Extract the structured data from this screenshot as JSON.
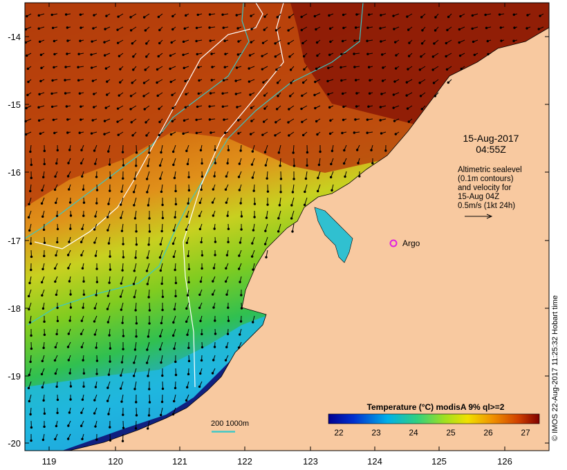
{
  "map": {
    "lon_ticks": [
      "119",
      "120",
      "121",
      "122",
      "123",
      "124",
      "125",
      "126"
    ],
    "lat_ticks": [
      "-14",
      "-15",
      "-16",
      "-17",
      "-18",
      "-19",
      "-20"
    ],
    "date_line1": "15-Aug-2017",
    "date_line2": "04:55Z",
    "altimetry_lines": [
      "Altimetric sealevel",
      "(0.1m contours)",
      "and velocity for",
      "15-Aug 04Z",
      "0.5m/s (1kt 24h)"
    ],
    "argo_label": "Argo",
    "colorbar_title": "Temperature (°C) modisA 9% ql>=2",
    "colorbar_ticks": [
      "22",
      "23",
      "24",
      "25",
      "26",
      "27"
    ],
    "contour_legend": "200  1000m",
    "credit": "© IMOS 22-Aug-2017 11:25:32 Hobart time",
    "colors": {
      "land": "#f8c9a0",
      "argo_marker": "#e020e0",
      "bathy_contour": "#38c8c8",
      "sealevel_contour": "#ffffff"
    }
  }
}
